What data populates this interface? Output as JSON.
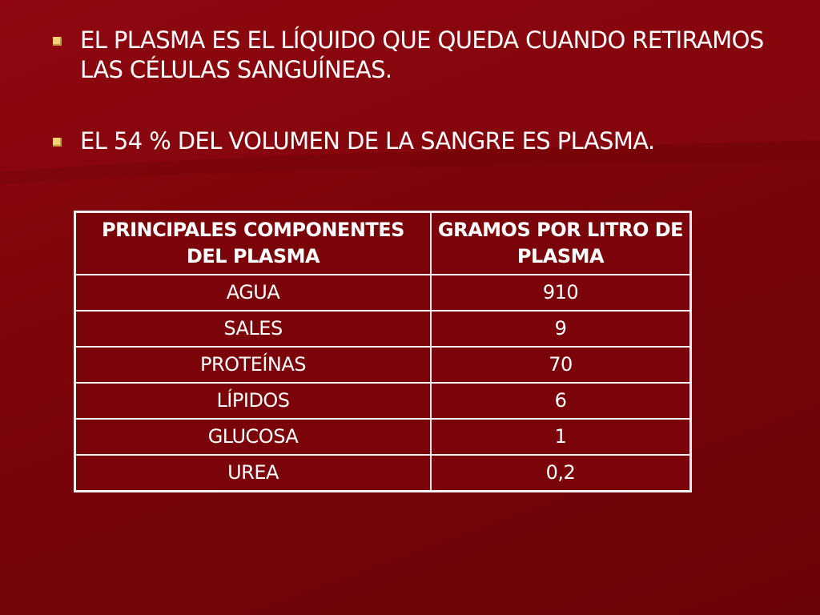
{
  "bullets": [
    "EL PLASMA ES EL LÍQUIDO QUE QUEDA CUANDO RETIRAMOS LAS CÉLULAS SANGUÍNEAS.",
    "EL 54 % DEL VOLUMEN DE LA SANGRE ES PLASMA."
  ],
  "table": {
    "headers": [
      "PRINCIPALES COMPONENTES DEL PLASMA",
      "GRAMOS POR LITRO DE PLASMA"
    ],
    "rows": [
      [
        "AGUA",
        "910"
      ],
      [
        "SALES",
        "9"
      ],
      [
        "PROTEÍNAS",
        "70"
      ],
      [
        "LÍPIDOS",
        "6"
      ],
      [
        "GLUCOSA",
        "1"
      ],
      [
        "UREA",
        "0,2"
      ]
    ]
  },
  "colors": {
    "background": "#7a0408",
    "bullet_marker": "#f4d27a",
    "text": "#ffffff",
    "table_border": "#f2f2f2"
  }
}
